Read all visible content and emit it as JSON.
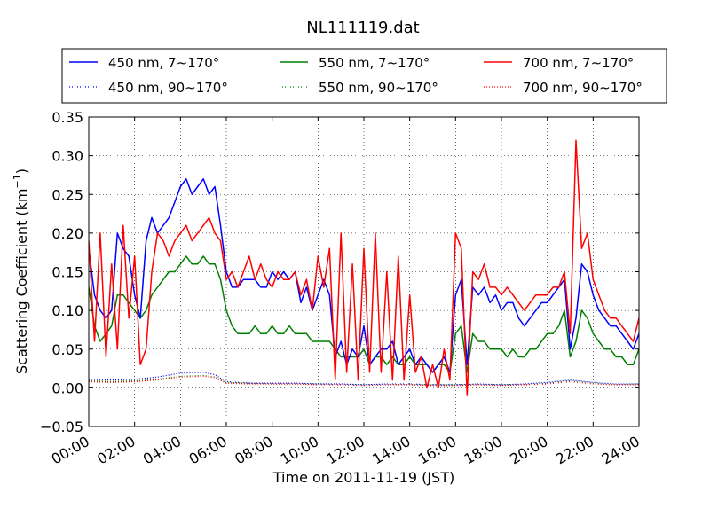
{
  "chart_data": {
    "type": "line",
    "title": "NL111119.dat",
    "xlabel": "Time on 2011-11-19 (JST)",
    "ylabel_main": "Scattering Coefficient (km",
    "ylabel_sup": "−1",
    "ylabel_end": ")",
    "xlim": [
      0,
      24
    ],
    "ylim": [
      -0.05,
      0.35
    ],
    "x_ticks": [
      {
        "value": 0,
        "label": "00:00"
      },
      {
        "value": 2,
        "label": "02:00"
      },
      {
        "value": 4,
        "label": "04:00"
      },
      {
        "value": 6,
        "label": "06:00"
      },
      {
        "value": 8,
        "label": "08:00"
      },
      {
        "value": 10,
        "label": "10:00"
      },
      {
        "value": 12,
        "label": "12:00"
      },
      {
        "value": 14,
        "label": "14:00"
      },
      {
        "value": 16,
        "label": "16:00"
      },
      {
        "value": 18,
        "label": "18:00"
      },
      {
        "value": 20,
        "label": "20:00"
      },
      {
        "value": 22,
        "label": "22:00"
      },
      {
        "value": 24,
        "label": "24:00"
      }
    ],
    "y_ticks": [
      {
        "value": -0.05,
        "label": "−0.05"
      },
      {
        "value": 0.0,
        "label": "0.00"
      },
      {
        "value": 0.05,
        "label": "0.05"
      },
      {
        "value": 0.1,
        "label": "0.10"
      },
      {
        "value": 0.15,
        "label": "0.15"
      },
      {
        "value": 0.2,
        "label": "0.20"
      },
      {
        "value": 0.25,
        "label": "0.25"
      },
      {
        "value": 0.3,
        "label": "0.30"
      },
      {
        "value": 0.35,
        "label": "0.35"
      }
    ],
    "grid": true,
    "legend_position": "above plot",
    "series": [
      {
        "name": "450 nm, 7∼170°",
        "color": "#0000ff",
        "style": "solid",
        "x": [
          0,
          0.25,
          0.5,
          0.75,
          1,
          1.25,
          1.5,
          1.75,
          2,
          2.25,
          2.5,
          2.75,
          3,
          3.25,
          3.5,
          3.75,
          4,
          4.25,
          4.5,
          4.75,
          5,
          5.25,
          5.5,
          5.75,
          6,
          6.25,
          6.5,
          6.75,
          7,
          7.25,
          7.5,
          7.75,
          8,
          8.25,
          8.5,
          8.75,
          9,
          9.25,
          9.5,
          9.75,
          10,
          10.25,
          10.5,
          10.75,
          11,
          11.25,
          11.5,
          11.75,
          12,
          12.25,
          12.5,
          12.75,
          13,
          13.25,
          13.5,
          13.75,
          14,
          14.25,
          14.5,
          14.75,
          15,
          15.25,
          15.5,
          15.75,
          16,
          16.25,
          16.5,
          16.75,
          17,
          17.25,
          17.5,
          17.75,
          18,
          18.25,
          18.5,
          18.75,
          19,
          19.25,
          19.5,
          19.75,
          20,
          20.25,
          20.5,
          20.75,
          21,
          21.25,
          21.5,
          21.75,
          22,
          22.25,
          22.5,
          22.75,
          23,
          23.25,
          23.5,
          23.75,
          24
        ],
        "y": [
          0.18,
          0.12,
          0.1,
          0.09,
          0.1,
          0.2,
          0.18,
          0.17,
          0.12,
          0.09,
          0.19,
          0.22,
          0.2,
          0.21,
          0.22,
          0.24,
          0.26,
          0.27,
          0.25,
          0.26,
          0.27,
          0.25,
          0.26,
          0.21,
          0.15,
          0.13,
          0.13,
          0.14,
          0.14,
          0.14,
          0.13,
          0.13,
          0.15,
          0.14,
          0.15,
          0.14,
          0.15,
          0.11,
          0.13,
          0.1,
          0.12,
          0.14,
          0.12,
          0.04,
          0.06,
          0.03,
          0.05,
          0.04,
          0.08,
          0.03,
          0.04,
          0.05,
          0.05,
          0.06,
          0.03,
          0.04,
          0.05,
          0.03,
          0.04,
          0.03,
          0.02,
          0.03,
          0.04,
          0.02,
          0.12,
          0.14,
          0.03,
          0.13,
          0.12,
          0.13,
          0.11,
          0.12,
          0.1,
          0.11,
          0.11,
          0.09,
          0.08,
          0.09,
          0.1,
          0.11,
          0.11,
          0.12,
          0.13,
          0.14,
          0.05,
          0.09,
          0.16,
          0.15,
          0.12,
          0.1,
          0.09,
          0.08,
          0.08,
          0.07,
          0.06,
          0.05,
          0.07
        ]
      },
      {
        "name": "550 nm, 7∼170°",
        "color": "#008000",
        "style": "solid",
        "x": [
          0,
          0.25,
          0.5,
          0.75,
          1,
          1.25,
          1.5,
          1.75,
          2,
          2.25,
          2.5,
          2.75,
          3,
          3.25,
          3.5,
          3.75,
          4,
          4.25,
          4.5,
          4.75,
          5,
          5.25,
          5.5,
          5.75,
          6,
          6.25,
          6.5,
          6.75,
          7,
          7.25,
          7.5,
          7.75,
          8,
          8.25,
          8.5,
          8.75,
          9,
          9.25,
          9.5,
          9.75,
          10,
          10.25,
          10.5,
          10.75,
          11,
          11.25,
          11.5,
          11.75,
          12,
          12.25,
          12.5,
          12.75,
          13,
          13.25,
          13.5,
          13.75,
          14,
          14.25,
          14.5,
          14.75,
          15,
          15.25,
          15.5,
          15.75,
          16,
          16.25,
          16.5,
          16.75,
          17,
          17.25,
          17.5,
          17.75,
          18,
          18.25,
          18.5,
          18.75,
          19,
          19.25,
          19.5,
          19.75,
          20,
          20.25,
          20.5,
          20.75,
          21,
          21.25,
          21.5,
          21.75,
          22,
          22.25,
          22.5,
          22.75,
          23,
          23.25,
          23.5,
          23.75,
          24
        ],
        "y": [
          0.13,
          0.08,
          0.06,
          0.07,
          0.08,
          0.12,
          0.12,
          0.11,
          0.1,
          0.09,
          0.1,
          0.12,
          0.13,
          0.14,
          0.15,
          0.15,
          0.16,
          0.17,
          0.16,
          0.16,
          0.17,
          0.16,
          0.16,
          0.14,
          0.1,
          0.08,
          0.07,
          0.07,
          0.07,
          0.08,
          0.07,
          0.07,
          0.08,
          0.07,
          0.07,
          0.08,
          0.07,
          0.07,
          0.07,
          0.06,
          0.06,
          0.06,
          0.06,
          0.05,
          0.04,
          0.04,
          0.04,
          0.04,
          0.05,
          0.03,
          0.04,
          0.04,
          0.03,
          0.04,
          0.03,
          0.03,
          0.04,
          0.03,
          0.03,
          0.03,
          0.02,
          0.03,
          0.03,
          0.02,
          0.07,
          0.08,
          0.02,
          0.07,
          0.06,
          0.06,
          0.05,
          0.05,
          0.05,
          0.04,
          0.05,
          0.04,
          0.04,
          0.05,
          0.05,
          0.06,
          0.07,
          0.07,
          0.08,
          0.1,
          0.04,
          0.06,
          0.1,
          0.09,
          0.07,
          0.06,
          0.05,
          0.05,
          0.04,
          0.04,
          0.03,
          0.03,
          0.05
        ]
      },
      {
        "name": "700 nm, 7∼170°",
        "color": "#ff0000",
        "style": "solid",
        "x": [
          0,
          0.25,
          0.5,
          0.75,
          1,
          1.25,
          1.5,
          1.75,
          2,
          2.25,
          2.5,
          2.75,
          3,
          3.25,
          3.5,
          3.75,
          4,
          4.25,
          4.5,
          4.75,
          5,
          5.25,
          5.5,
          5.75,
          6,
          6.25,
          6.5,
          6.75,
          7,
          7.25,
          7.5,
          7.75,
          8,
          8.25,
          8.5,
          8.75,
          9,
          9.25,
          9.5,
          9.75,
          10,
          10.25,
          10.5,
          10.75,
          11,
          11.25,
          11.5,
          11.75,
          12,
          12.25,
          12.5,
          12.75,
          13,
          13.25,
          13.5,
          13.75,
          14,
          14.25,
          14.5,
          14.75,
          15,
          15.25,
          15.5,
          15.75,
          16,
          16.25,
          16.5,
          16.75,
          17,
          17.25,
          17.5,
          17.75,
          18,
          18.25,
          18.5,
          18.75,
          19,
          19.25,
          19.5,
          19.75,
          20,
          20.25,
          20.5,
          20.75,
          21,
          21.25,
          21.5,
          21.75,
          22,
          22.25,
          22.5,
          22.75,
          23,
          23.25,
          23.5,
          23.75,
          24
        ],
        "y": [
          0.19,
          0.06,
          0.2,
          0.04,
          0.16,
          0.05,
          0.21,
          0.09,
          0.17,
          0.03,
          0.05,
          0.15,
          0.2,
          0.19,
          0.17,
          0.19,
          0.2,
          0.21,
          0.19,
          0.2,
          0.21,
          0.22,
          0.2,
          0.19,
          0.14,
          0.15,
          0.13,
          0.15,
          0.17,
          0.14,
          0.16,
          0.14,
          0.13,
          0.15,
          0.14,
          0.14,
          0.15,
          0.12,
          0.14,
          0.1,
          0.17,
          0.13,
          0.18,
          0.01,
          0.2,
          0.02,
          0.16,
          0.01,
          0.18,
          0.02,
          0.2,
          0.02,
          0.15,
          0.01,
          0.17,
          0.01,
          0.12,
          0.02,
          0.04,
          0.0,
          0.03,
          0.0,
          0.05,
          0.01,
          0.2,
          0.18,
          -0.01,
          0.15,
          0.14,
          0.16,
          0.13,
          0.13,
          0.12,
          0.13,
          0.12,
          0.11,
          0.1,
          0.11,
          0.12,
          0.12,
          0.12,
          0.13,
          0.13,
          0.15,
          0.07,
          0.32,
          0.18,
          0.2,
          0.14,
          0.12,
          0.1,
          0.09,
          0.09,
          0.08,
          0.07,
          0.06,
          0.09
        ]
      },
      {
        "name": "450 nm, 90∼170°",
        "color": "#0000ff",
        "style": "dotted",
        "x": [
          0,
          1,
          2,
          3,
          4,
          5,
          5.5,
          6,
          7,
          8,
          9,
          10,
          11,
          12,
          13,
          14,
          15,
          16,
          17,
          18,
          19,
          20,
          21,
          22,
          23,
          24
        ],
        "y": [
          0.011,
          0.01,
          0.011,
          0.014,
          0.019,
          0.02,
          0.017,
          0.008,
          0.006,
          0.006,
          0.006,
          0.005,
          0.005,
          0.004,
          0.005,
          0.005,
          0.004,
          0.004,
          0.005,
          0.004,
          0.005,
          0.007,
          0.01,
          0.007,
          0.005,
          0.005
        ]
      },
      {
        "name": "550 nm, 90∼170°",
        "color": "#008000",
        "style": "dotted",
        "x": [
          0,
          1,
          2,
          3,
          4,
          5,
          5.5,
          6,
          7,
          8,
          9,
          10,
          11,
          12,
          13,
          14,
          15,
          16,
          17,
          18,
          19,
          20,
          21,
          22,
          23,
          24
        ],
        "y": [
          0.009,
          0.008,
          0.009,
          0.011,
          0.015,
          0.016,
          0.014,
          0.007,
          0.006,
          0.005,
          0.005,
          0.005,
          0.004,
          0.004,
          0.004,
          0.004,
          0.004,
          0.004,
          0.004,
          0.004,
          0.004,
          0.006,
          0.009,
          0.006,
          0.004,
          0.005
        ]
      },
      {
        "name": "700 nm, 90∼170°",
        "color": "#ff0000",
        "style": "dotted",
        "x": [
          0,
          1,
          2,
          3,
          4,
          5,
          5.5,
          6,
          7,
          8,
          9,
          10,
          11,
          12,
          13,
          14,
          15,
          16,
          17,
          18,
          19,
          20,
          21,
          22,
          23,
          24
        ],
        "y": [
          0.008,
          0.007,
          0.008,
          0.01,
          0.014,
          0.015,
          0.013,
          0.006,
          0.005,
          0.005,
          0.005,
          0.004,
          0.004,
          0.003,
          0.004,
          0.004,
          0.003,
          0.003,
          0.004,
          0.003,
          0.004,
          0.005,
          0.008,
          0.005,
          0.004,
          0.004
        ]
      }
    ],
    "legend_order": [
      0,
      1,
      2,
      3,
      4,
      5
    ]
  }
}
